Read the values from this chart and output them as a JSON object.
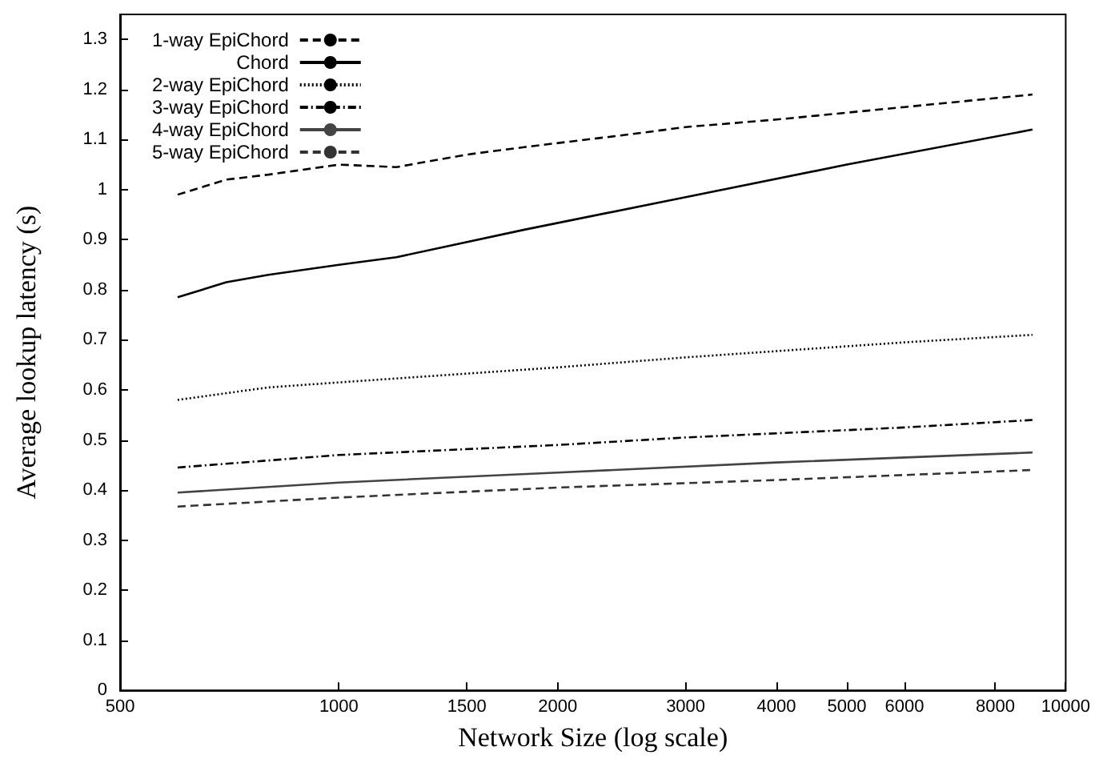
{
  "chart_data": {
    "type": "line",
    "xlabel": "Network Size (log scale)",
    "ylabel": "Average lookup latency (s)",
    "log": "x",
    "xlim": [
      500,
      10000
    ],
    "xticks": [
      500,
      1000,
      1500,
      2000,
      3000,
      4000,
      5000,
      6000,
      8000,
      10000
    ],
    "ylim": [
      0,
      1.35
    ],
    "yticks": [
      0,
      0.1,
      0.2,
      0.3,
      0.4,
      0.5,
      0.6,
      0.7,
      0.8,
      0.9,
      1,
      1.1,
      1.2,
      1.3
    ],
    "grid": false,
    "legend": "top left",
    "marker": "none",
    "series": [
      {
        "name": "1-way EpiChord",
        "color": "#000000",
        "line_style": "dashed",
        "x": [
          600,
          700,
          800,
          1000,
          1200,
          1500,
          1800,
          2500,
          3000,
          4000,
          6000,
          9000
        ],
        "values": [
          0.99,
          1.02,
          1.03,
          1.05,
          1.045,
          1.07,
          1.085,
          1.11,
          1.125,
          1.14,
          1.165,
          1.19
        ]
      },
      {
        "name": "Chord",
        "color": "#000000",
        "line_style": "solid",
        "x": [
          600,
          700,
          800,
          1000,
          1200,
          1800,
          3000,
          5000,
          9000
        ],
        "values": [
          0.785,
          0.815,
          0.83,
          0.85,
          0.865,
          0.92,
          0.985,
          1.05,
          1.12
        ]
      },
      {
        "name": "2-way EpiChord",
        "color": "#000000",
        "line_style": "dotted",
        "x": [
          600,
          800,
          1000,
          2000,
          3000,
          6000,
          9000
        ],
        "values": [
          0.58,
          0.605,
          0.615,
          0.645,
          0.665,
          0.695,
          0.71
        ]
      },
      {
        "name": "3-way EpiChord",
        "color": "#000000",
        "line_style": "dashdot",
        "x": [
          600,
          1000,
          2000,
          3000,
          6000,
          9000
        ],
        "values": [
          0.445,
          0.47,
          0.49,
          0.505,
          0.525,
          0.54
        ]
      },
      {
        "name": "4-way EpiChord",
        "color": "#444444",
        "line_style": "solid",
        "x": [
          600,
          1000,
          2000,
          4000,
          9000
        ],
        "values": [
          0.395,
          0.415,
          0.435,
          0.455,
          0.475
        ]
      },
      {
        "name": "5-way EpiChord",
        "color": "#333333",
        "line_style": "dashed",
        "x": [
          600,
          1000,
          2000,
          4000,
          9000
        ],
        "values": [
          0.367,
          0.385,
          0.405,
          0.42,
          0.44
        ]
      }
    ]
  }
}
